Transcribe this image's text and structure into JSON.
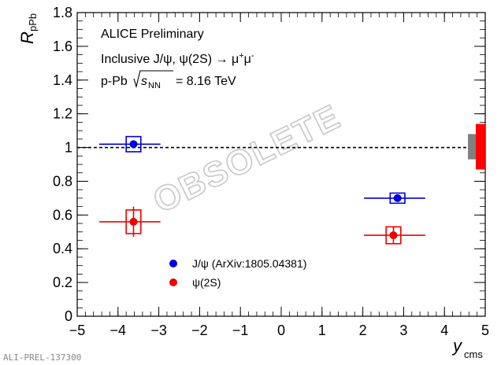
{
  "chart_data": {
    "type": "scatter",
    "title_lines": [
      "ALICE Preliminary",
      "Inclusive J/ψ, ψ(2S) → μ⁺μ⁻",
      "p-Pb √sNN = 8.16 TeV"
    ],
    "text": {
      "experiment": "ALICE Preliminary",
      "process_prefix": "Inclusive J/ψ, ψ(2S) → μ",
      "plus": "+",
      "mu": "μ",
      "minus": "-",
      "system_prefix": "p-Pb",
      "s": "s",
      "nn": "NN",
      "energy": "= 8.16 TeV",
      "watermark": "OBSOLETE",
      "footer": "ALI-PREL-137300"
    },
    "xlabel": {
      "main": "y",
      "sub": "cms"
    },
    "ylabel": {
      "main": "R",
      "sub": "pPb"
    },
    "xlim": [
      -5,
      5
    ],
    "ylim": [
      0,
      1.8
    ],
    "xticks": [
      -5,
      -4,
      -3,
      -2,
      -1,
      0,
      1,
      2,
      3,
      4,
      5
    ],
    "yticks": [
      0,
      0.2,
      0.4,
      0.6,
      0.8,
      1,
      1.2,
      1.4,
      1.6,
      1.8
    ],
    "ytick_labels": [
      "0",
      "0.2",
      "0.4",
      "0.6",
      "0.8",
      "1",
      "1.2",
      "1.4",
      "1.6",
      "1.8"
    ],
    "xtick_labels": [
      "−5",
      "−4",
      "−3",
      "−2",
      "−1",
      "0",
      "1",
      "2",
      "3",
      "4",
      "5"
    ],
    "reference_line": 1.0,
    "series": [
      {
        "name": "J/ψ (ArXiv:1805.04381)",
        "color": "#0000dd",
        "points": [
          {
            "x": -3.62,
            "xlo": -4.46,
            "xhi": -2.96,
            "y": 1.02,
            "stat": 0.02,
            "sys": 0.045,
            "box_half_width": 0.18
          },
          {
            "x": 2.85,
            "xlo": 2.03,
            "xhi": 3.53,
            "y": 0.7,
            "stat": 0.02,
            "sys": 0.03,
            "box_half_width": 0.18
          }
        ]
      },
      {
        "name": "ψ(2S)",
        "color": "#ee0000",
        "points": [
          {
            "x": -3.62,
            "xlo": -4.46,
            "xhi": -2.96,
            "y": 0.56,
            "stat": 0.09,
            "sys": 0.07,
            "box_half_width": 0.18
          },
          {
            "x": 2.75,
            "xlo": 2.03,
            "xhi": 3.53,
            "y": 0.48,
            "stat": 0.05,
            "sys": 0.05,
            "box_half_width": 0.18
          }
        ]
      }
    ],
    "global_uncertainty_boxes": [
      {
        "color": "#808080",
        "low": 0.93,
        "high": 1.08
      },
      {
        "color": "#ff0000",
        "low": 0.87,
        "high": 1.14
      }
    ],
    "legend_placement": "lower-center"
  }
}
